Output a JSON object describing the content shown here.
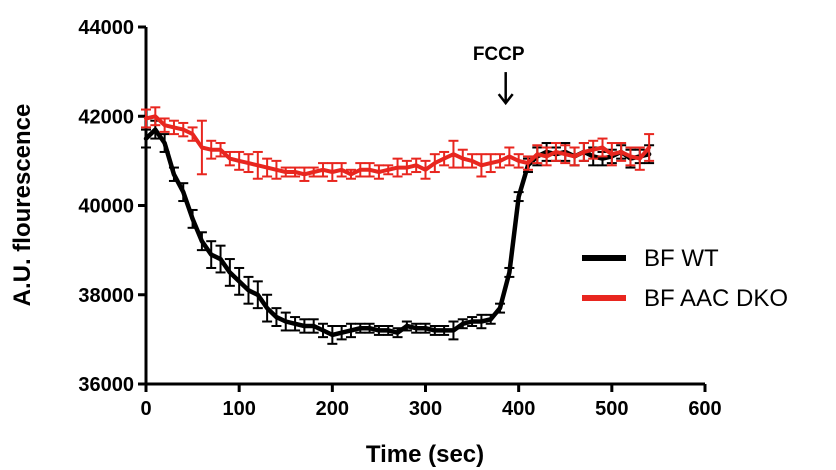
{
  "chart_data": {
    "type": "line",
    "title": "",
    "xlabel": "Time (sec)",
    "ylabel": "A.U. flourescence",
    "xlim": [
      0,
      600
    ],
    "ylim": [
      36000,
      44000
    ],
    "xticks": [
      0,
      100,
      200,
      300,
      400,
      500,
      600
    ],
    "yticks": [
      36000,
      38000,
      40000,
      42000,
      44000
    ],
    "grid": false,
    "legend_position": "right",
    "annotations": [
      {
        "text": "FCCP",
        "x": 385,
        "y": 42900
      }
    ],
    "series": [
      {
        "name": "BF WT",
        "color": "#000000",
        "x": [
          0,
          10,
          20,
          30,
          40,
          50,
          60,
          70,
          80,
          90,
          100,
          110,
          120,
          130,
          140,
          150,
          160,
          170,
          180,
          190,
          200,
          210,
          220,
          230,
          240,
          250,
          260,
          270,
          280,
          290,
          300,
          310,
          320,
          330,
          340,
          350,
          360,
          370,
          380,
          390,
          400,
          410,
          420,
          430,
          440,
          450,
          460,
          470,
          480,
          490,
          500,
          510,
          520,
          530,
          540
        ],
        "y": [
          41500,
          41700,
          41400,
          40700,
          40300,
          39700,
          39200,
          38900,
          38800,
          38500,
          38300,
          38100,
          38000,
          37700,
          37500,
          37400,
          37350,
          37300,
          37300,
          37200,
          37100,
          37150,
          37200,
          37250,
          37250,
          37200,
          37200,
          37150,
          37300,
          37250,
          37250,
          37200,
          37200,
          37200,
          37350,
          37400,
          37400,
          37450,
          37700,
          38500,
          40200,
          40900,
          41100,
          41200,
          41150,
          41200,
          41100,
          41200,
          41100,
          41050,
          41100,
          41200,
          41050,
          41100,
          41150
        ],
        "error": [
          200,
          200,
          200,
          150,
          200,
          200,
          200,
          300,
          300,
          300,
          300,
          300,
          300,
          300,
          200,
          200,
          150,
          150,
          150,
          150,
          200,
          150,
          150,
          100,
          100,
          100,
          100,
          100,
          100,
          100,
          100,
          100,
          100,
          200,
          100,
          100,
          150,
          100,
          100,
          100,
          100,
          150,
          200,
          200,
          150,
          200,
          200,
          200,
          200,
          150,
          150,
          150,
          200,
          150,
          200
        ]
      },
      {
        "name": "BF AAC DKO",
        "color": "#e8261f",
        "x": [
          0,
          10,
          20,
          30,
          40,
          50,
          60,
          70,
          80,
          90,
          100,
          110,
          120,
          130,
          140,
          150,
          160,
          170,
          180,
          190,
          200,
          210,
          220,
          230,
          240,
          250,
          260,
          270,
          280,
          290,
          300,
          310,
          320,
          330,
          340,
          350,
          360,
          370,
          380,
          390,
          400,
          410,
          420,
          430,
          440,
          450,
          460,
          470,
          480,
          490,
          500,
          510,
          520,
          530,
          540
        ],
        "y": [
          41950,
          42000,
          41800,
          41750,
          41700,
          41600,
          41300,
          41250,
          41250,
          41050,
          41000,
          40950,
          40900,
          40850,
          40800,
          40750,
          40750,
          40700,
          40750,
          40800,
          40750,
          40800,
          40700,
          40800,
          40800,
          40750,
          40800,
          40850,
          40850,
          40900,
          40800,
          40950,
          41050,
          41150,
          41050,
          41000,
          40900,
          40950,
          41000,
          41100,
          41000,
          40950,
          41150,
          41100,
          41200,
          41150,
          41100,
          41200,
          41250,
          41300,
          41150,
          41200,
          41100,
          41050,
          41300
        ],
        "error": [
          200,
          200,
          150,
          150,
          150,
          150,
          600,
          200,
          150,
          150,
          200,
          200,
          300,
          200,
          200,
          100,
          100,
          150,
          100,
          150,
          200,
          150,
          100,
          150,
          150,
          150,
          100,
          200,
          150,
          150,
          200,
          200,
          150,
          300,
          200,
          150,
          250,
          200,
          150,
          200,
          150,
          150,
          200,
          200,
          200,
          200,
          200,
          200,
          200,
          200,
          250,
          200,
          200,
          250,
          300
        ]
      }
    ]
  }
}
